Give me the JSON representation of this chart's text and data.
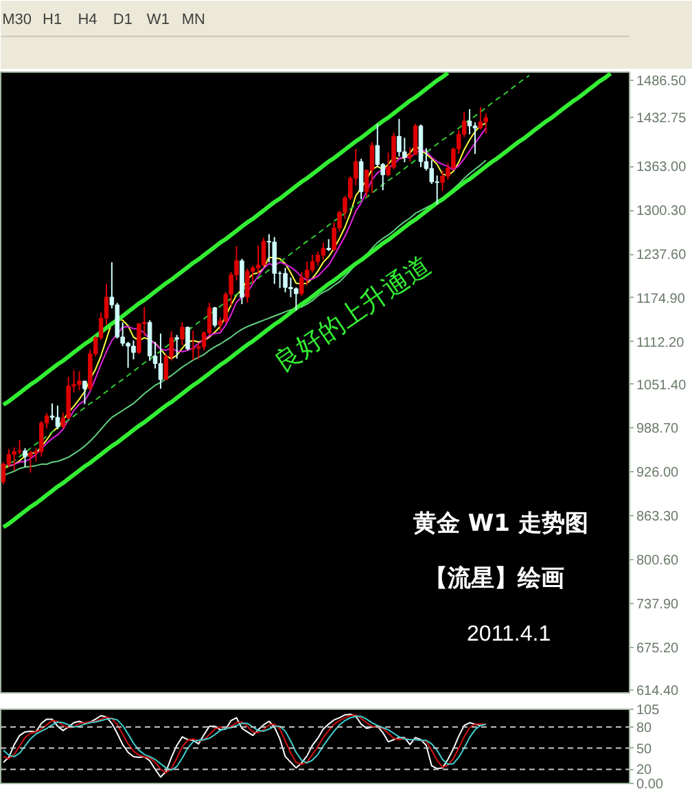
{
  "chart_data": [
    {
      "type": "other",
      "annotations": [
        "M30",
        "H1",
        "H4",
        "D1",
        "W1",
        "MN"
      ]
    },
    {
      "type": "candlestick",
      "categories": [
        null,
        null,
        null,
        null,
        null,
        null,
        null,
        null,
        null,
        null,
        null,
        null,
        null,
        null,
        null,
        null,
        null,
        null,
        null,
        null,
        null,
        null,
        null,
        null,
        null,
        null,
        null,
        null,
        null,
        null,
        null,
        null,
        null,
        null,
        null,
        null,
        null,
        null,
        null,
        null,
        null,
        null,
        null,
        null,
        null,
        null,
        null,
        null,
        null,
        null,
        null,
        null,
        null,
        null,
        null,
        null,
        null,
        null,
        null,
        null,
        null,
        null,
        null,
        null,
        null,
        null,
        null,
        null,
        null,
        null,
        null,
        null,
        null,
        null,
        null,
        null,
        null,
        null,
        null,
        null,
        null,
        null,
        null,
        null,
        null,
        null,
        null,
        null,
        null,
        null,
        null,
        null,
        null,
        null,
        null,
        null,
        null,
        null,
        null,
        null,
        null,
        null,
        null,
        null,
        null,
        null,
        null,
        null,
        null,
        null,
        null,
        null,
        null,
        null,
        null,
        null
      ],
      "ohlc": [
        [
          912,
          940,
          908,
          937
        ],
        [
          937,
          959,
          933,
          951
        ],
        [
          951,
          961,
          928,
          955
        ],
        [
          955,
          972,
          951,
          956
        ],
        [
          956,
          960,
          933,
          948
        ],
        [
          948,
          957,
          925,
          953
        ],
        [
          953,
          960,
          941,
          955
        ],
        [
          955,
          999,
          948,
          996
        ],
        [
          996,
          1010,
          988,
          1006
        ],
        [
          1006,
          1024,
          1000,
          1004
        ],
        [
          1004,
          1021,
          987,
          991
        ],
        [
          991,
          1011,
          988,
          1003
        ],
        [
          1003,
          1062,
          1002,
          1049
        ],
        [
          1049,
          1071,
          1040,
          1051
        ],
        [
          1051,
          1070,
          1043,
          1056
        ],
        [
          1056,
          1056,
          1023,
          1045
        ],
        [
          1045,
          1101,
          1043,
          1095
        ],
        [
          1095,
          1120,
          1091,
          1118
        ],
        [
          1118,
          1154,
          1115,
          1146
        ],
        [
          1146,
          1195,
          1136,
          1176
        ],
        [
          1176,
          1226,
          1160,
          1165
        ],
        [
          1165,
          1168,
          1117,
          1119
        ],
        [
          1119,
          1140,
          1106,
          1110
        ],
        [
          1110,
          1112,
          1075,
          1106
        ],
        [
          1106,
          1114,
          1087,
          1097
        ],
        [
          1097,
          1139,
          1095,
          1138
        ],
        [
          1138,
          1162,
          1121,
          1140
        ],
        [
          1140,
          1143,
          1085,
          1092
        ],
        [
          1092,
          1112,
          1074,
          1081
        ],
        [
          1081,
          1124,
          1045,
          1058
        ],
        [
          1058,
          1095,
          1058,
          1091
        ],
        [
          1091,
          1127,
          1085,
          1118
        ],
        [
          1118,
          1122,
          1088,
          1116
        ],
        [
          1116,
          1140,
          1107,
          1133
        ],
        [
          1133,
          1134,
          1100,
          1102
        ],
        [
          1102,
          1128,
          1086,
          1103
        ],
        [
          1103,
          1110,
          1088,
          1105
        ],
        [
          1105,
          1127,
          1100,
          1125
        ],
        [
          1125,
          1168,
          1122,
          1161
        ],
        [
          1161,
          1162,
          1133,
          1136
        ],
        [
          1136,
          1147,
          1128,
          1142
        ],
        [
          1142,
          1183,
          1139,
          1180
        ],
        [
          1180,
          1212,
          1164,
          1208
        ],
        [
          1208,
          1249,
          1200,
          1228
        ],
        [
          1228,
          1231,
          1166,
          1176
        ],
        [
          1176,
          1217,
          1168,
          1213
        ],
        [
          1213,
          1221,
          1196,
          1218
        ],
        [
          1218,
          1250,
          1210,
          1222
        ],
        [
          1222,
          1261,
          1220,
          1256
        ],
        [
          1256,
          1266,
          1226,
          1255
        ],
        [
          1255,
          1262,
          1195,
          1210
        ],
        [
          1210,
          1213,
          1189,
          1210
        ],
        [
          1210,
          1218,
          1183,
          1190
        ],
        [
          1190,
          1204,
          1176,
          1188
        ],
        [
          1188,
          1190,
          1157,
          1181
        ],
        [
          1181,
          1212,
          1178,
          1204
        ],
        [
          1204,
          1227,
          1193,
          1215
        ],
        [
          1215,
          1237,
          1211,
          1227
        ],
        [
          1227,
          1241,
          1222,
          1236
        ],
        [
          1236,
          1254,
          1230,
          1246
        ],
        [
          1246,
          1259,
          1242,
          1244
        ],
        [
          1244,
          1283,
          1242,
          1275
        ],
        [
          1275,
          1300,
          1270,
          1297
        ],
        [
          1297,
          1321,
          1288,
          1318
        ],
        [
          1318,
          1349,
          1315,
          1346
        ],
        [
          1346,
          1388,
          1336,
          1370
        ],
        [
          1370,
          1374,
          1316,
          1327
        ],
        [
          1327,
          1358,
          1319,
          1358
        ],
        [
          1358,
          1398,
          1325,
          1393
        ],
        [
          1393,
          1424,
          1362,
          1366
        ],
        [
          1366,
          1368,
          1329,
          1351
        ],
        [
          1351,
          1383,
          1349,
          1362
        ],
        [
          1362,
          1411,
          1359,
          1406
        ],
        [
          1406,
          1431,
          1377,
          1384
        ],
        [
          1384,
          1404,
          1369,
          1376
        ],
        [
          1376,
          1390,
          1370,
          1380
        ],
        [
          1380,
          1424,
          1380,
          1421
        ],
        [
          1421,
          1423,
          1362,
          1370
        ],
        [
          1370,
          1389,
          1357,
          1360
        ],
        [
          1360,
          1372,
          1338,
          1341
        ],
        [
          1341,
          1350,
          1309,
          1340
        ],
        [
          1340,
          1357,
          1328,
          1349
        ],
        [
          1349,
          1368,
          1344,
          1361
        ],
        [
          1361,
          1390,
          1358,
          1388
        ],
        [
          1388,
          1415,
          1381,
          1409
        ],
        [
          1409,
          1441,
          1405,
          1428
        ],
        [
          1428,
          1445,
          1409,
          1421
        ],
        [
          1421,
          1426,
          1381,
          1418
        ],
        [
          1418,
          1448,
          1416,
          1427
        ],
        [
          1427,
          1439,
          1410,
          1432.75
        ],
        null,
        null,
        null,
        null,
        null,
        null,
        null,
        null,
        null,
        null,
        null,
        null,
        null,
        null,
        null,
        null,
        null,
        null,
        null,
        null,
        null,
        null,
        null,
        null,
        null,
        null
      ],
      "colors": [
        "#dd0000",
        "#dd0000",
        "#dd0000",
        "#dd0000",
        "#d0ffff",
        "#dd0000",
        "#dd0000",
        "#dd0000",
        "#dd0000",
        "#d0ffff",
        "#d0ffff",
        "#dd0000",
        "#dd0000",
        "#dd0000",
        "#dd0000",
        "#d0ffff",
        "#dd0000",
        "#dd0000",
        "#dd0000",
        "#dd0000",
        "#d0ffff",
        "#d0ffff",
        "#d0ffff",
        "#d0ffff",
        "#d0ffff",
        "#dd0000",
        "#dd0000",
        "#d0ffff",
        "#d0ffff",
        "#d0ffff",
        "#dd0000",
        "#dd0000",
        "#d0ffff",
        "#dd0000",
        "#d0ffff",
        "#dd0000",
        "#dd0000",
        "#dd0000",
        "#dd0000",
        "#d0ffff",
        "#dd0000",
        "#dd0000",
        "#dd0000",
        "#dd0000",
        "#d0ffff",
        "#dd0000",
        "#dd0000",
        "#dd0000",
        "#dd0000",
        "#d0ffff",
        "#d0ffff",
        "#d0ffff",
        "#d0ffff",
        "#d0ffff",
        "#d0ffff",
        "#dd0000",
        "#dd0000",
        "#dd0000",
        "#dd0000",
        "#dd0000",
        "#d0ffff",
        "#dd0000",
        "#dd0000",
        "#dd0000",
        "#dd0000",
        "#dd0000",
        "#d0ffff",
        "#dd0000",
        "#dd0000",
        "#d0ffff",
        "#d0ffff",
        "#dd0000",
        "#dd0000",
        "#d0ffff",
        "#d0ffff",
        "#dd0000",
        "#dd0000",
        "#d0ffff",
        "#d0ffff",
        "#d0ffff",
        "#d0ffff",
        "#dd0000",
        "#dd0000",
        "#dd0000",
        "#dd0000",
        "#dd0000",
        "#d0ffff",
        "#d0ffff",
        "#dd0000",
        "#dd0000",
        null,
        null,
        null,
        null,
        null,
        null,
        null,
        null,
        null,
        null,
        null,
        null,
        null,
        null,
        null,
        null,
        null,
        null,
        null,
        null,
        null,
        null,
        null,
        null,
        null,
        null
      ],
      "series": [
        {
          "type": "line",
          "color": "#ffff40",
          "values": [
            931,
            934,
            937,
            942,
            949,
            953,
            953,
            962,
            972,
            983,
            990,
            1000,
            1011,
            1020,
            1030,
            1041,
            1059,
            1073,
            1092,
            1116,
            1140,
            1145,
            1143,
            1135,
            1119,
            1114,
            1118,
            1115,
            1110,
            1102,
            1092,
            1088,
            1093,
            1103,
            1112,
            1114,
            1112,
            1114,
            1119,
            1126,
            1134,
            1149,
            1165,
            1179,
            1187,
            1201,
            1209,
            1211,
            1217,
            1233,
            1232,
            1231,
            1224,
            1211,
            1196,
            1195,
            1196,
            1203,
            1213,
            1226,
            1234,
            1246,
            1260,
            1276,
            1296,
            1321,
            1332,
            1344,
            1359,
            1363,
            1359,
            1366,
            1376,
            1374,
            1376,
            1382,
            1393,
            1386,
            1381,
            1374,
            1366,
            1352,
            1350,
            1356,
            1369,
            1387,
            1401,
            1413,
            1421,
            1425,
            null,
            null,
            null,
            null,
            null,
            null,
            null,
            null,
            null,
            null,
            null,
            null,
            null,
            null,
            null,
            null,
            null,
            null,
            null,
            null,
            null,
            null,
            null,
            null,
            null,
            null
          ]
        },
        {
          "type": "line",
          "color": "#e020e0",
          "values": [
            936,
            935,
            937,
            940,
            941,
            945,
            951,
            959,
            967,
            974,
            979,
            987,
            1001,
            1014,
            1023,
            1028,
            1041,
            1060,
            1080,
            1098,
            1114,
            1123,
            1133,
            1134,
            1131,
            1130,
            1125,
            1115,
            1109,
            1102,
            1100,
            1103,
            1099,
            1098,
            1100,
            1103,
            1110,
            1115,
            1121,
            1124,
            1125,
            1136,
            1151,
            1169,
            1176,
            1183,
            1195,
            1206,
            1217,
            1224,
            1221,
            1226,
            1223,
            1219,
            1213,
            1205,
            1200,
            1202,
            1206,
            1214,
            1222,
            1235,
            1249,
            1263,
            1280,
            1299,
            1311,
            1327,
            1344,
            1354,
            1359,
            1361,
            1366,
            1374,
            1377,
            1375,
            1383,
            1386,
            1385,
            1376,
            1370,
            1366,
            1363,
            1358,
            1364,
            1374,
            1385,
            1396,
            1407,
            1418,
            null,
            null,
            null,
            null,
            null,
            null,
            null,
            null,
            null,
            null,
            null,
            null,
            null,
            null,
            null,
            null,
            null,
            null,
            null,
            null,
            null,
            null,
            null,
            null,
            null,
            null
          ]
        },
        {
          "type": "line",
          "color": "#60d080",
          "values": [
            921,
            924,
            927,
            931,
            933,
            934,
            935,
            937,
            937,
            940,
            941,
            944,
            947,
            952,
            957,
            963,
            970,
            978,
            987,
            996,
            1004,
            1009,
            1014,
            1019,
            1024,
            1031,
            1038,
            1044,
            1050,
            1054,
            1059,
            1064,
            1070,
            1076,
            1081,
            1086,
            1090,
            1094,
            1100,
            1105,
            1109,
            1114,
            1119,
            1125,
            1130,
            1134,
            1137,
            1140,
            1143,
            1146,
            1149,
            1152,
            1155,
            1158,
            1160,
            1162,
            1166,
            1171,
            1178,
            1183,
            1187,
            1193,
            1198,
            1206,
            1214,
            1223,
            1230,
            1237,
            1246,
            1254,
            1260,
            1265,
            1271,
            1278,
            1284,
            1289,
            1296,
            1300,
            1304,
            1308,
            1313,
            1318,
            1324,
            1331,
            1338,
            1346,
            1353,
            1359,
            1365,
            1372,
            null,
            null,
            null,
            null,
            null,
            null,
            null,
            null,
            null,
            null,
            null,
            null,
            null,
            null,
            null,
            null,
            null,
            null,
            null,
            null,
            null,
            null,
            null,
            null,
            null,
            null
          ]
        },
        {
          "type": "line",
          "color": "#33ee33",
          "values": [
            1022,
            1027,
            1033,
            1039,
            1045,
            1051,
            1056,
            1062,
            1068,
            1074,
            1080,
            1085,
            1091,
            1097,
            1103,
            1109,
            1114,
            1120,
            1126,
            1132,
            1138,
            1143,
            1149,
            1155,
            1161,
            1167,
            1172,
            1178,
            1184,
            1190,
            1196,
            1201,
            1207,
            1213,
            1219,
            1225,
            1230,
            1236,
            1242,
            1248,
            1254,
            1259,
            1265,
            1271,
            1277,
            1283,
            1288,
            1294,
            1300,
            1306,
            1312,
            1317,
            1323,
            1329,
            1335,
            1341,
            1346,
            1352,
            1358,
            1364,
            1370,
            1375,
            1381,
            1387,
            1393,
            1399,
            1404,
            1410,
            1416,
            1422,
            1428,
            1433,
            1439,
            1445,
            1451,
            1457,
            1462,
            1468,
            1474,
            1480,
            1486,
            1491,
            1497,
            null,
            null,
            null,
            null,
            null,
            null,
            null,
            null,
            null,
            null,
            null,
            null,
            null,
            null,
            null,
            null,
            null,
            null,
            null,
            null,
            null,
            null,
            null,
            null,
            null,
            null,
            null,
            null,
            null,
            null,
            null,
            null,
            null
          ]
        },
        {
          "type": "line",
          "color": "#33ee33",
          "values": [
            847,
            852,
            858,
            864,
            870,
            876,
            881,
            887,
            893,
            899,
            905,
            910,
            916,
            922,
            928,
            934,
            939,
            945,
            951,
            957,
            963,
            968,
            974,
            980,
            986,
            992,
            997,
            1003,
            1009,
            1015,
            1021,
            1026,
            1032,
            1038,
            1044,
            1050,
            1055,
            1061,
            1067,
            1073,
            1079,
            1084,
            1090,
            1096,
            1102,
            1108,
            1113,
            1119,
            1125,
            1131,
            1137,
            1142,
            1148,
            1154,
            1160,
            1166,
            1171,
            1177,
            1183,
            1189,
            1195,
            1200,
            1206,
            1212,
            1218,
            1224,
            1229,
            1235,
            1241,
            1247,
            1253,
            1258,
            1264,
            1270,
            1276,
            1282,
            1287,
            1293,
            1299,
            1305,
            1311,
            1316,
            1322,
            1328,
            1334,
            1340,
            1345,
            1351,
            1357,
            1363,
            1369,
            1374,
            1380,
            1386,
            1392,
            1398,
            1403,
            1409,
            1415,
            1421,
            1427,
            1432,
            1438,
            1444,
            1450,
            1456,
            1461,
            1467,
            1473,
            1479,
            1485,
            1490,
            1496,
            null,
            null,
            null
          ]
        },
        {
          "type": "line",
          "color": "#33cc33",
          "line_style": "dashed",
          "values": [
            931,
            937,
            942,
            948,
            954,
            960,
            966,
            971,
            977,
            983,
            989,
            995,
            1000,
            1006,
            1012,
            1018,
            1024,
            1029,
            1035,
            1041,
            1047,
            1053,
            1058,
            1064,
            1070,
            1076,
            1082,
            1087,
            1093,
            1099,
            1105,
            1111,
            1116,
            1122,
            1128,
            1134,
            1140,
            1145,
            1151,
            1157,
            1163,
            1169,
            1174,
            1180,
            1186,
            1192,
            1198,
            1203,
            1209,
            1215,
            1221,
            1227,
            1232,
            1238,
            1244,
            1250,
            1256,
            1261,
            1267,
            1273,
            1279,
            1285,
            1290,
            1296,
            1302,
            1308,
            1314,
            1319,
            1325,
            1331,
            1337,
            1343,
            1348,
            1354,
            1360,
            1366,
            1372,
            1377,
            1383,
            1389,
            1395,
            1401,
            1406,
            1412,
            1418,
            1424,
            1430,
            1435,
            1441,
            1447,
            1453,
            1459,
            1464,
            1470,
            1476,
            1482,
            1488,
            1493,
            null,
            null,
            null,
            null,
            null,
            null,
            null,
            null,
            null,
            null,
            null,
            null,
            null,
            null,
            null,
            null,
            null,
            null
          ]
        }
      ],
      "ylim": [
        610,
        1498
      ],
      "yticks": [
        {
          "value": 1486.5,
          "label": "1486.50"
        },
        {
          "value": 1432.75,
          "label": "1432.75"
        },
        {
          "value": 1363,
          "label": "1363.00"
        },
        {
          "value": 1300.3,
          "label": "1300.30"
        },
        {
          "value": 1237.6,
          "label": "1237.60"
        },
        {
          "value": 1174.9,
          "label": "1174.90"
        },
        {
          "value": 1112.2,
          "label": "1112.20"
        },
        {
          "value": 1051.4,
          "label": "1051.40"
        },
        {
          "value": 988.7,
          "label": "988.70"
        },
        {
          "value": 926,
          "label": "926.00"
        },
        {
          "value": 863.3,
          "label": "863.30"
        },
        {
          "value": 800.6,
          "label": "800.60"
        },
        {
          "value": 737.9,
          "label": "737.90"
        },
        {
          "value": 675.2,
          "label": "675.20"
        },
        {
          "value": 614.4,
          "label": "614.40"
        }
      ],
      "tick_labels": "y",
      "annotations": [
        "良好的上升通道",
        "黄金 W1 走势图",
        "【流星】绘画",
        "2011.4.1"
      ]
    },
    {
      "type": "line",
      "categories": [
        null,
        null,
        null,
        null,
        null,
        null,
        null,
        null,
        null,
        null,
        null,
        null,
        null,
        null,
        null,
        null,
        null,
        null,
        null,
        null,
        null,
        null,
        null,
        null,
        null,
        null,
        null,
        null,
        null,
        null,
        null,
        null,
        null,
        null,
        null,
        null,
        null,
        null,
        null,
        null,
        null,
        null,
        null,
        null,
        null,
        null,
        null,
        null,
        null,
        null,
        null,
        null,
        null,
        null,
        null,
        null,
        null,
        null,
        null,
        null,
        null,
        null,
        null,
        null,
        null,
        null,
        null,
        null,
        null,
        null,
        null,
        null,
        null,
        null,
        null,
        null,
        null,
        null,
        null,
        null,
        null,
        null,
        null,
        null,
        null,
        null,
        null,
        null,
        null,
        null,
        null,
        null,
        null,
        null,
        null,
        null,
        null,
        null,
        null,
        null,
        null,
        null,
        null,
        null,
        null,
        null,
        null,
        null,
        null,
        null,
        null,
        null,
        null,
        null,
        null,
        null
      ],
      "series": [
        {
          "color": "#ffffff",
          "values": [
            30,
            37,
            55,
            68,
            73,
            74,
            73,
            85,
            91,
            91,
            81,
            75,
            80,
            86,
            88,
            85,
            87,
            91,
            96,
            94,
            85,
            71,
            55,
            44,
            38,
            37,
            38,
            32,
            20,
            9,
            17,
            37,
            54,
            66,
            62,
            61,
            56,
            69,
            81,
            81,
            76,
            77,
            89,
            93,
            78,
            73,
            68,
            76,
            83,
            88,
            80,
            63,
            38,
            30,
            22,
            29,
            39,
            54,
            64,
            77,
            84,
            90,
            93,
            97,
            98,
            95,
            84,
            78,
            80,
            81,
            72,
            59,
            62,
            65,
            65,
            55,
            65,
            62,
            54,
            25,
            21,
            22,
            34,
            49,
            67,
            82,
            86,
            84,
            82,
            84,
            null,
            null,
            null,
            null,
            null,
            null,
            null,
            null,
            null,
            null,
            null,
            null,
            null,
            null,
            null,
            null,
            null,
            null,
            null,
            null,
            null,
            null,
            null,
            null,
            null,
            null
          ]
        },
        {
          "color": "#d01010",
          "values": [
            38,
            35,
            41,
            53,
            65,
            71,
            73,
            77,
            83,
            89,
            88,
            82,
            79,
            80,
            85,
            86,
            87,
            88,
            91,
            94,
            92,
            83,
            70,
            56,
            46,
            40,
            38,
            36,
            30,
            20,
            15,
            21,
            36,
            52,
            61,
            63,
            60,
            62,
            69,
            77,
            80,
            78,
            81,
            86,
            87,
            81,
            73,
            72,
            76,
            83,
            84,
            77,
            60,
            43,
            30,
            27,
            30,
            41,
            52,
            65,
            75,
            84,
            89,
            93,
            96,
            97,
            92,
            86,
            81,
            80,
            78,
            71,
            64,
            62,
            64,
            62,
            62,
            61,
            60,
            47,
            33,
            23,
            26,
            35,
            50,
            66,
            79,
            84,
            84,
            84,
            null,
            null,
            null,
            null,
            null,
            null,
            null,
            null,
            null,
            null,
            null,
            null,
            null,
            null,
            null,
            null,
            null,
            null,
            null,
            null,
            null,
            null,
            null,
            null,
            null,
            null
          ]
        },
        {
          "color": "#40d0d0",
          "values": [
            47,
            40,
            38,
            43,
            53,
            63,
            70,
            74,
            78,
            83,
            87,
            86,
            83,
            80,
            81,
            84,
            86,
            87,
            89,
            91,
            92,
            90,
            82,
            70,
            57,
            47,
            41,
            38,
            34,
            28,
            22,
            19,
            24,
            36,
            50,
            59,
            61,
            62,
            64,
            69,
            75,
            78,
            79,
            82,
            85,
            85,
            80,
            75,
            74,
            77,
            81,
            81,
            74,
            60,
            44,
            33,
            29,
            33,
            41,
            53,
            64,
            74,
            83,
            89,
            93,
            95,
            95,
            91,
            86,
            82,
            79,
            76,
            71,
            66,
            63,
            62,
            62,
            61,
            61,
            56,
            47,
            34,
            27,
            28,
            37,
            50,
            65,
            76,
            82,
            84,
            null,
            null,
            null,
            null,
            null,
            null,
            null,
            null,
            null,
            null,
            null,
            null,
            null,
            null,
            null,
            null,
            null,
            null,
            null,
            null,
            null,
            null,
            null,
            null,
            null,
            null
          ]
        }
      ],
      "ylim": [
        0,
        105
      ],
      "yticks": [
        105,
        80,
        50,
        20,
        {
          "value": 0,
          "label": "0.00"
        }
      ],
      "ref_lines": [
        {
          "axis": "y",
          "value": 80,
          "color": "#c8c8c8",
          "line_style": "dashed"
        },
        {
          "axis": "y",
          "value": 50,
          "color": "#c8c8c8",
          "line_style": "dashed"
        },
        {
          "axis": "y",
          "value": 20,
          "color": "#c8c8c8",
          "line_style": "dashed"
        }
      ],
      "tick_labels": "y"
    }
  ]
}
